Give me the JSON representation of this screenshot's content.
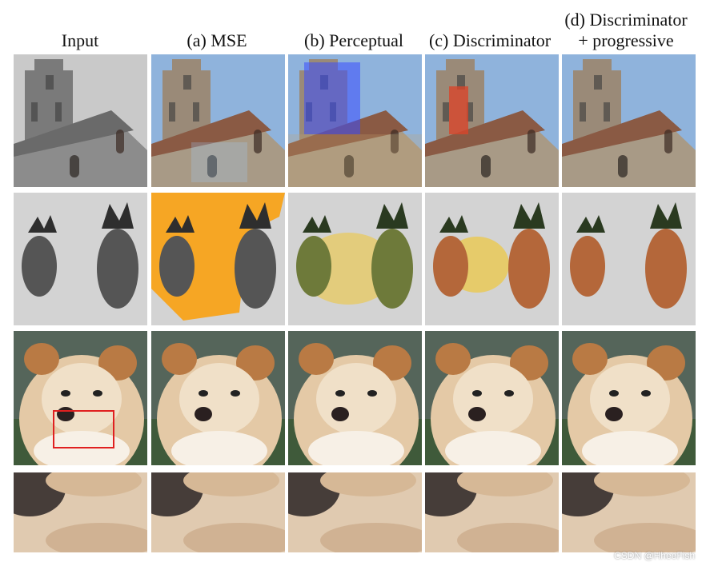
{
  "columns": [
    {
      "label": "Input"
    },
    {
      "label": "(a) MSE"
    },
    {
      "label": "(b) Perceptual"
    },
    {
      "label": "(c) Discriminator"
    },
    {
      "label": "(d) Discriminator + progressive"
    }
  ],
  "rows": [
    {
      "subject": "church"
    },
    {
      "subject": "pineapples"
    },
    {
      "subject": "dog"
    },
    {
      "subject": "dog-crop"
    }
  ],
  "colors": {
    "sky_blue": "#8fb3dc",
    "stone": "#a89a86",
    "roof": "#8a5a44",
    "pineapple": "#b4673a",
    "orange_blob": "#f6a624",
    "yellow_blob": "#e9c957",
    "fur": "#e4c9a6",
    "fur_dark": "#b97a44",
    "highlight_box": "#e02020"
  },
  "watermark": "CSDN @HheeFish"
}
